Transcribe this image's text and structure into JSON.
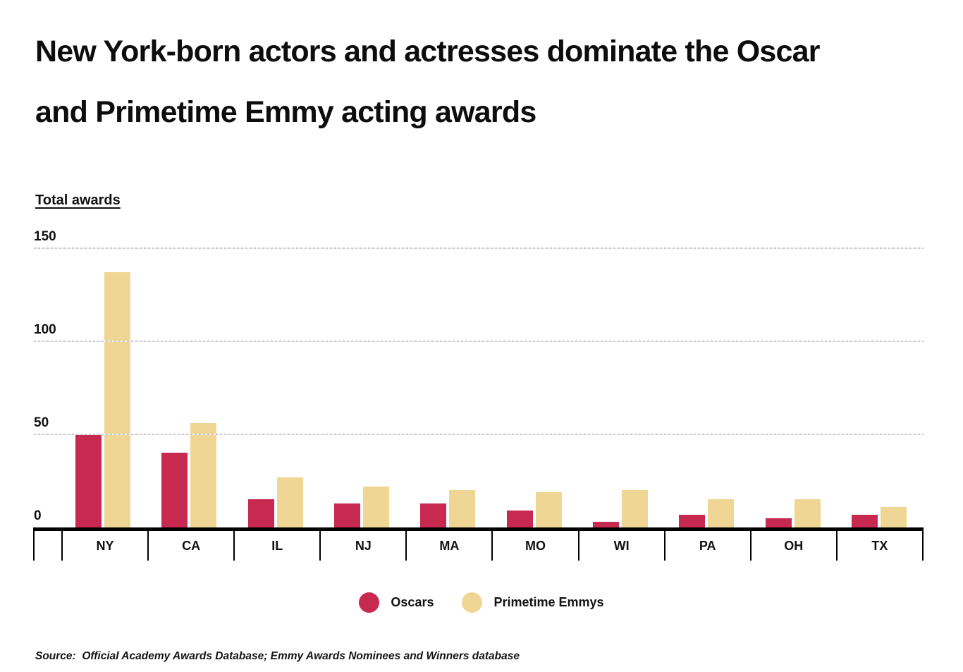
{
  "title_lines": [
    "New York-born actors and actresses dominate the Oscar",
    "and Primetime Emmy acting awards"
  ],
  "y_axis": {
    "title": "Total awards",
    "tick_labels": [
      "150",
      "100",
      "50",
      "0"
    ]
  },
  "chart_data": {
    "type": "bar",
    "title": "New York-born actors and actresses dominate the Oscar and Primetime Emmy acting awards",
    "xlabel": "",
    "ylabel": "Total awards",
    "ylim": [
      0,
      150
    ],
    "yticks": [
      0,
      50,
      100,
      150
    ],
    "grid": "horizontal dashed gridlines at 50, 100, 150",
    "legend_position": "bottom center",
    "categories": [
      "NY",
      "CA",
      "IL",
      "NJ",
      "MA",
      "MO",
      "WI",
      "PA",
      "OH",
      "TX"
    ],
    "series": [
      {
        "name": "Oscars",
        "color": "#C82951",
        "values": [
          50,
          40,
          15,
          13,
          13,
          9,
          3,
          7,
          5,
          7
        ]
      },
      {
        "name": "Primetime Emmys",
        "color": "#EFD695",
        "values": [
          137,
          56,
          27,
          22,
          20,
          19,
          20,
          15,
          15,
          11
        ]
      }
    ]
  },
  "legend": {
    "items": [
      {
        "label": "Oscars",
        "color": "#C82951"
      },
      {
        "label": "Primetime Emmys",
        "color": "#EFD695"
      }
    ]
  },
  "source_note": "Source:  Official Academy Awards Database; Emmy Awards Nominees and Winners database"
}
